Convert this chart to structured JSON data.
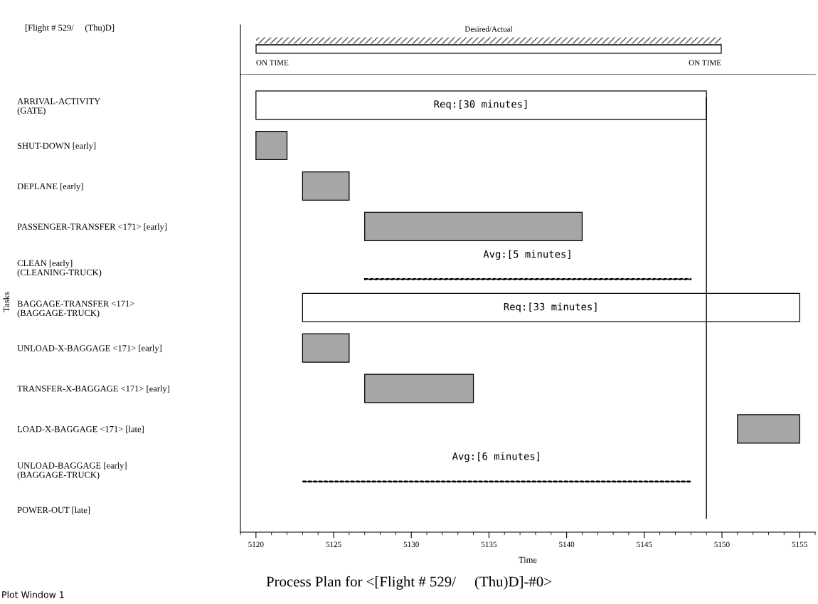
{
  "chart_data": [
    {
      "type": "other",
      "title": "Desired/Actual",
      "annotations": [
        "ON TIME",
        "ON TIME"
      ]
    },
    {
      "type": "bar",
      "orientation": "horizontal",
      "title": "Process Plan for <[Flight # 529/     (Thu)D]-#0>",
      "xlabel": "Time",
      "ylabel": "Tasks",
      "tick_labels": "x",
      "categories": [
        "ARRIVAL-ACTIVITY\n(GATE)",
        "SHUT-DOWN [early]",
        "DEPLANE [early]",
        "PASSENGER-TRANSFER <171> [early]",
        "CLEAN [early]\n(CLEANING-TRUCK)",
        "BAGGAGE-TRANSFER <171>\n(BAGGAGE-TRUCK)",
        "UNLOAD-X-BAGGAGE <171> [early]",
        "TRANSFER-X-BAGGAGE <171> [early]",
        "LOAD-X-BAGGAGE <171> [late]",
        "UNLOAD-BAGGAGE [early]\n(BAGGAGE-TRUCK)",
        "POWER-OUT [late]"
      ],
      "xlim": [
        5119,
        5156
      ],
      "xticks": [
        5120,
        5125,
        5130,
        5135,
        5140,
        5145,
        5150,
        5155
      ],
      "series": [
        {
          "colors": [
            "#ffffff",
            "#a6a6a6",
            "#a6a6a6",
            "#a6a6a6",
            null,
            "#ffffff",
            "#a6a6a6",
            "#a6a6a6",
            "#a6a6a6",
            null,
            null
          ],
          "base": [
            5120,
            5120,
            5123,
            5127,
            null,
            5123,
            5123,
            5127,
            5151,
            null,
            null
          ],
          "values": [
            29,
            2,
            3,
            14,
            null,
            32,
            3,
            7,
            4,
            null,
            null
          ]
        },
        {
          "line_style": "dashed",
          "color": "#000000",
          "base": [
            null,
            null,
            null,
            null,
            5127,
            null,
            null,
            null,
            null,
            5123,
            null
          ],
          "values": [
            null,
            null,
            null,
            null,
            21,
            null,
            null,
            null,
            null,
            25,
            null
          ]
        }
      ],
      "ref_lines": [
        {
          "axis": "x",
          "value": 5149,
          "color": "#000000"
        }
      ],
      "annotations": [
        "[Flight # 529/     (Thu)D]",
        "Plot Window 1",
        "Req:[30 minutes]",
        "Avg:[5 minutes]",
        "Req:[33 minutes]",
        "Avg:[6 minutes]"
      ]
    }
  ]
}
